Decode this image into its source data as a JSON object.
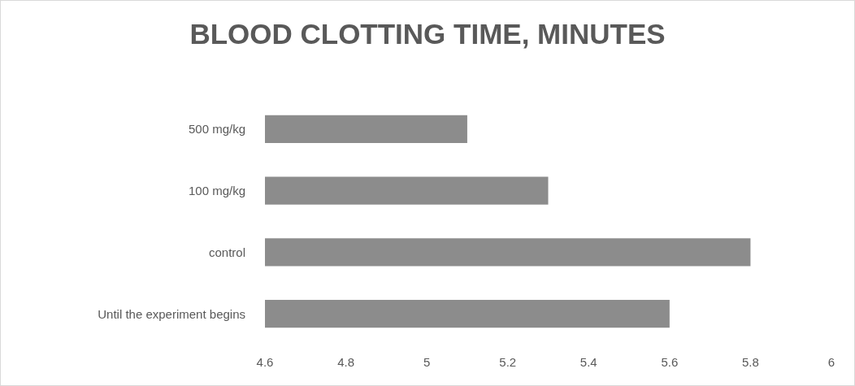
{
  "chart_data": {
    "type": "bar",
    "orientation": "horizontal",
    "title": "BLOOD CLOTTING TIME, MINUTES",
    "categories": [
      "500 mg/kg",
      "100 mg/kg",
      "control",
      "Until the experiment begins"
    ],
    "values": [
      5.1,
      5.3,
      5.8,
      5.6
    ],
    "color": "#8c8c8c",
    "xlim": [
      4.6,
      6
    ],
    "xticks": [
      4.6,
      4.8,
      5,
      5.2,
      5.4,
      5.6,
      5.8,
      6
    ],
    "grid": false
  }
}
